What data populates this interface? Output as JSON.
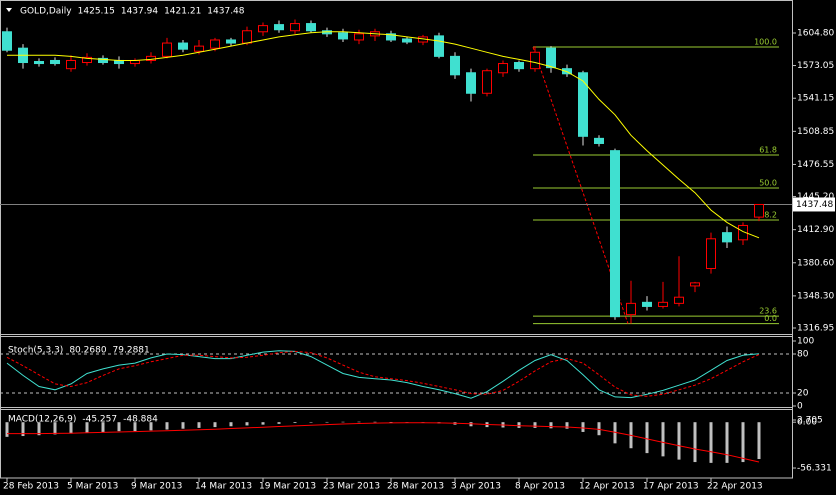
{
  "chart_data": [
    {
      "type": "candlestick",
      "title": "GOLD,Daily",
      "categories": [
        "28 Feb 2013",
        null,
        null,
        null,
        "5 Mar 2013",
        null,
        null,
        null,
        "9 Mar 2013",
        null,
        null,
        null,
        "14 Mar 2013",
        null,
        null,
        null,
        "19 Mar 2013",
        null,
        null,
        null,
        "23 Mar 2013",
        null,
        null,
        null,
        "28 Mar 2013",
        null,
        null,
        null,
        "3 Apr 2013",
        null,
        null,
        null,
        "8 Apr 2013",
        null,
        null,
        null,
        "12 Apr 2013",
        null,
        null,
        null,
        "17 Apr 2013",
        null,
        null,
        null,
        "22 Apr 2013",
        null,
        null,
        null
      ],
      "open": [
        1606,
        1590,
        1577,
        1578,
        1570,
        1576,
        1580,
        1578,
        1575,
        1578,
        1582,
        1595,
        1587,
        1590,
        1598,
        1595,
        1606,
        1613,
        1607,
        1614,
        1607,
        1605,
        1598,
        1602,
        1604,
        1599,
        1596,
        1602,
        1582,
        1566,
        1546,
        1566,
        1576,
        1570,
        1590,
        1570,
        1566,
        1502,
        1490,
        1330,
        1342,
        1338,
        1341,
        1358,
        1375,
        1410,
        1403,
        1425.15
      ],
      "high": [
        1610,
        1594,
        1580,
        1581,
        1583,
        1585,
        1583,
        1582,
        1580,
        1586,
        1600,
        1598,
        1598,
        1600,
        1600,
        1611,
        1615,
        1617,
        1618,
        1617,
        1610,
        1609,
        1608,
        1609,
        1607,
        1601,
        1603,
        1605,
        1586,
        1570,
        1570,
        1578,
        1578,
        1592,
        1592,
        1574,
        1568,
        1505,
        1492,
        1363,
        1348,
        1362,
        1387,
        1362,
        1410,
        1416,
        1420,
        1437.94
      ],
      "low": [
        1586,
        1570,
        1572,
        1573,
        1567,
        1573,
        1574,
        1570,
        1572,
        1575,
        1580,
        1586,
        1584,
        1587,
        1592,
        1593,
        1602,
        1605,
        1604,
        1605,
        1601,
        1596,
        1594,
        1597,
        1596,
        1594,
        1593,
        1580,
        1560,
        1538,
        1543,
        1562,
        1567,
        1567,
        1566,
        1562,
        1495,
        1494,
        1325,
        1321.21,
        1334,
        1336,
        1338,
        1352,
        1370,
        1395,
        1398,
        1421.21
      ],
      "close": [
        1588,
        1576,
        1575,
        1575,
        1578,
        1581,
        1576,
        1575,
        1578,
        1582,
        1595,
        1589,
        1592,
        1598,
        1595,
        1607,
        1612,
        1608,
        1614,
        1607,
        1604,
        1599,
        1604,
        1606,
        1598,
        1596,
        1601,
        1582,
        1564,
        1546,
        1568,
        1575,
        1570,
        1586,
        1571,
        1565,
        1504,
        1497,
        1328,
        1341,
        1338,
        1342,
        1347,
        1361,
        1404,
        1401,
        1417,
        1437.48
      ],
      "bull_color": "#ff0000",
      "bear_color": "#40e0d0",
      "wick_color": "#e0e0e0",
      "overlays": [
        {
          "color": "#ffff00",
          "values": [
            1583,
            1583,
            1583,
            1583,
            1582,
            1580,
            1579,
            1578,
            1578,
            1579,
            1581,
            1583,
            1586,
            1589,
            1592,
            1595,
            1598,
            1601,
            1603,
            1605,
            1606,
            1606,
            1605,
            1604,
            1603,
            1601,
            1599,
            1597,
            1594,
            1590,
            1586,
            1582,
            1579,
            1576,
            1572,
            1567,
            1558,
            1540,
            1525,
            1505,
            1490,
            1476,
            1462,
            1449,
            1432,
            1420,
            1411,
            1405
          ]
        }
      ],
      "fibonacci": {
        "color": "#9acd32",
        "trend_color": "#ff0000",
        "levels": [
          {
            "label": "100.0",
            "price": 1591.1
          },
          {
            "label": "61.8",
            "price": 1485.8
          },
          {
            "label": "50.0",
            "price": 1453.6
          },
          {
            "label": "38.2",
            "price": 1422.3
          },
          {
            "label": "23.6",
            "price": 1328.6
          },
          {
            "label": "0.0",
            "price": 1321.21
          }
        ]
      },
      "price_line_color": "#808080",
      "ylim": [
        1313.05,
        1635.05
      ],
      "yticks": [
        {
          "value": 1604.8,
          "label": "1604.80"
        },
        1573.05,
        1541.15,
        1508.85,
        1476.55,
        {
          "value": 1445.2,
          "label": "1445.20"
        },
        {
          "value": 1412.9,
          "label": "1412.90"
        },
        {
          "value": 1380.6,
          "label": "1380.60"
        },
        {
          "value": 1348.3,
          "label": "1348.30"
        },
        1316.95
      ]
    },
    {
      "type": "line",
      "title": "Stoch(5,3,3)",
      "title_values": [
        "80.2680",
        "79.2881"
      ],
      "series": [
        {
          "color": "#40e0d0",
          "dash": false,
          "values": [
            66,
            47,
            30,
            25,
            34,
            50,
            57,
            63,
            66,
            74,
            80,
            79,
            76,
            73,
            73,
            78,
            83,
            85,
            84,
            76,
            63,
            50,
            44,
            42,
            40,
            36,
            30,
            25,
            19,
            12,
            22,
            38,
            55,
            70,
            79,
            70,
            48,
            25,
            14,
            13,
            18,
            24,
            32,
            40,
            55,
            70,
            78,
            80.268
          ]
        },
        {
          "color": "#ff0000",
          "dash": true,
          "values": [
            75,
            62,
            48,
            34,
            30,
            36,
            47,
            57,
            62,
            68,
            73,
            78,
            78,
            76,
            74,
            75,
            78,
            82,
            84,
            82,
            74,
            63,
            52,
            45,
            42,
            39,
            35,
            30,
            25,
            19,
            18,
            24,
            38,
            54,
            68,
            73,
            66,
            48,
            29,
            17,
            15,
            18,
            25,
            32,
            42,
            55,
            68,
            79.2881
          ]
        }
      ],
      "levels": [
        20,
        80
      ],
      "ylim": [
        0,
        100
      ],
      "yticks": [
        100,
        80,
        20,
        0
      ]
    },
    {
      "type": "macd",
      "title": "MACD(12,26,9)",
      "title_values": [
        "-45.257",
        "-48.884"
      ],
      "histogram": {
        "color": "#c0c0c0",
        "values": [
          -18,
          -17,
          -16,
          -15,
          -14,
          -13,
          -12,
          -11,
          -11,
          -10,
          -9,
          -8,
          -7,
          -6,
          -5,
          -4,
          -3,
          -2,
          -1,
          -0.5,
          0.3,
          0.5,
          0.6,
          0.5,
          0.2,
          -0.3,
          -0.8,
          -1.5,
          -3,
          -5,
          -6,
          -6.5,
          -7,
          -7,
          -7.5,
          -8,
          -12,
          -16,
          -26,
          -32,
          -38,
          -42,
          -46,
          -49,
          -50,
          -50,
          -49,
          -45.257
        ]
      },
      "signal": {
        "color": "#ff0000",
        "values": [
          -14,
          -14,
          -14,
          -13.8,
          -13.5,
          -13,
          -12.5,
          -12,
          -11.5,
          -11,
          -10.5,
          -10,
          -9.3,
          -8.6,
          -7.8,
          -7,
          -6.2,
          -5.3,
          -4.5,
          -3.7,
          -2.9,
          -2.2,
          -1.6,
          -1.1,
          -0.8,
          -0.7,
          -0.7,
          -0.9,
          -1.3,
          -2,
          -2.8,
          -3.5,
          -4.3,
          -4.8,
          -5.4,
          -5.9,
          -7.1,
          -8.9,
          -12.3,
          -16.2,
          -20.5,
          -24.8,
          -29,
          -32.9,
          -36.3,
          -40,
          -44.5,
          -48.884
        ]
      },
      "ylim": [
        -68.6,
        15.0
      ],
      "yticks": [
        {
          "value": 0,
          "label": "0.00"
        },
        2.705,
        -56.331
      ]
    }
  ]
}
